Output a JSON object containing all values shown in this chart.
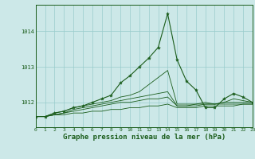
{
  "bg_color": "#cce8e8",
  "grid_color": "#99cccc",
  "line_color": "#1a5c1a",
  "marker_color": "#1a5c1a",
  "xlabel": "Graphe pression niveau de la mer (hPa)",
  "xlabel_fontsize": 6.5,
  "xticks": [
    0,
    1,
    2,
    3,
    4,
    5,
    6,
    7,
    8,
    9,
    10,
    11,
    12,
    13,
    14,
    15,
    16,
    17,
    18,
    19,
    20,
    21,
    22,
    23
  ],
  "yticks": [
    1012,
    1013,
    1014
  ],
  "ylim": [
    1011.3,
    1014.75
  ],
  "xlim": [
    0,
    23
  ],
  "series": [
    [
      1011.6,
      1011.6,
      1011.65,
      1011.65,
      1011.7,
      1011.7,
      1011.75,
      1011.75,
      1011.8,
      1011.8,
      1011.85,
      1011.85,
      1011.9,
      1011.9,
      1011.95,
      1011.85,
      1011.85,
      1011.85,
      1011.9,
      1011.9,
      1011.9,
      1011.9,
      1011.95,
      1011.95
    ],
    [
      1011.6,
      1011.6,
      1011.65,
      1011.7,
      1011.75,
      1011.8,
      1011.85,
      1011.9,
      1011.95,
      1012.0,
      1012.0,
      1012.05,
      1012.1,
      1012.1,
      1012.15,
      1011.9,
      1011.9,
      1011.9,
      1011.95,
      1011.95,
      1011.95,
      1011.95,
      1011.95,
      1011.95
    ],
    [
      1011.6,
      1011.6,
      1011.65,
      1011.7,
      1011.8,
      1011.85,
      1011.9,
      1011.95,
      1012.0,
      1012.05,
      1012.1,
      1012.15,
      1012.2,
      1012.25,
      1012.3,
      1011.9,
      1011.9,
      1011.95,
      1011.95,
      1011.95,
      1012.0,
      1012.0,
      1012.0,
      1012.0
    ],
    [
      1011.6,
      1011.6,
      1011.7,
      1011.75,
      1011.85,
      1011.9,
      1011.95,
      1012.0,
      1012.05,
      1012.15,
      1012.2,
      1012.3,
      1012.5,
      1012.7,
      1012.9,
      1011.95,
      1011.95,
      1011.95,
      1012.0,
      1011.95,
      1012.0,
      1012.1,
      1012.05,
      1012.0
    ],
    [
      1011.6,
      1011.6,
      1011.7,
      1011.75,
      1011.85,
      1011.9,
      1012.0,
      1012.1,
      1012.2,
      1012.55,
      1012.75,
      1013.0,
      1013.25,
      1013.55,
      1014.5,
      1013.2,
      1012.6,
      1012.35,
      1011.85,
      1011.85,
      1012.1,
      1012.25,
      1012.15,
      1012.0
    ]
  ],
  "main_series_idx": 4
}
